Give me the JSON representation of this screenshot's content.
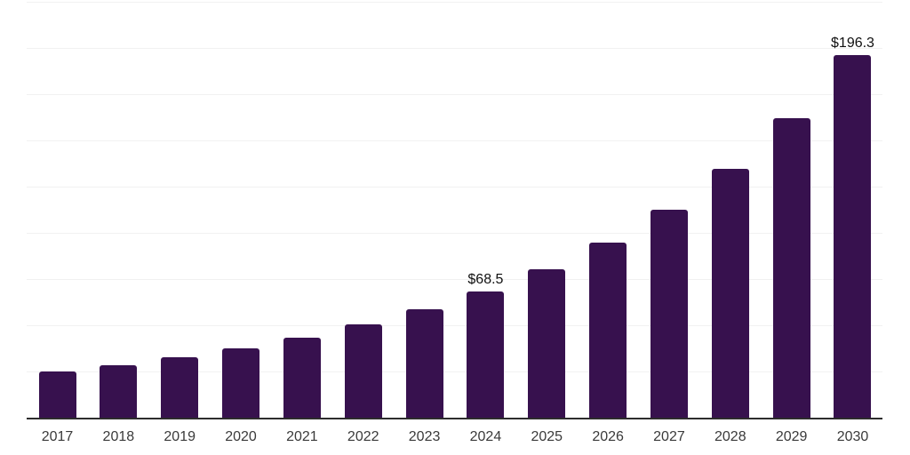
{
  "chart_data": {
    "type": "bar",
    "title": "",
    "xlabel": "",
    "ylabel": "",
    "categories": [
      "2017",
      "2018",
      "2019",
      "2020",
      "2021",
      "2022",
      "2023",
      "2024",
      "2025",
      "2026",
      "2027",
      "2028",
      "2029",
      "2030"
    ],
    "values": [
      24.8,
      28.3,
      32.6,
      37.4,
      43.1,
      50.7,
      58.5,
      68.5,
      80.1,
      94.9,
      112.5,
      134.5,
      162.1,
      196.3
    ],
    "data_labels": [
      "",
      "",
      "",
      "",
      "",
      "",
      "",
      "$68.5",
      "",
      "",
      "",
      "",
      "",
      "$196.3"
    ],
    "ylim": [
      0,
      225
    ],
    "gridline_step": 25,
    "grid": "horizontal-only",
    "y_tick_labels_visible": false,
    "legend": "none",
    "colors": {
      "bar": "#37114e",
      "axis_line": "#2d2d2d",
      "gridline": "#f1f1f1",
      "tick_label": "#3a3a3a",
      "data_label": "#101010",
      "background": "#ffffff"
    }
  }
}
